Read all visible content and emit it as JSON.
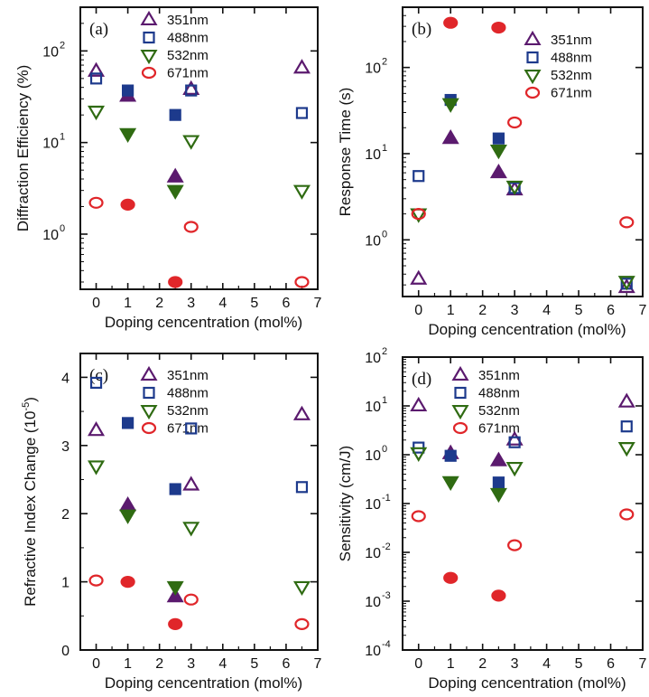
{
  "colors": {
    "351nm": "#5b1a6e",
    "488nm": "#1d3a8c",
    "532nm": "#2f6b12",
    "671nm": "#e0262a",
    "axis": "#111111"
  },
  "markers": {
    "351nm": "triangle-up",
    "488nm": "square",
    "532nm": "triangle-down",
    "671nm": "circle"
  },
  "chart_data": [
    {
      "id": "a",
      "panel_label": "(a)",
      "type": "scatter",
      "xlabel": "Doping cencentration (mol%)",
      "ylabel": "Diffraction Efficiency (%)",
      "yscale": "log",
      "xlim": [
        -0.5,
        7
      ],
      "ylim": [
        0.25,
        300
      ],
      "xticks": [
        0,
        1,
        2,
        3,
        4,
        5,
        6,
        7
      ],
      "xtick_labels": [
        "0",
        "1",
        "2",
        "3",
        "4",
        "5",
        "6",
        "7"
      ],
      "yticks": [
        1,
        10,
        100
      ],
      "ytick_labels": [
        [
          "10",
          "0"
        ],
        [
          "10",
          "1"
        ],
        [
          "10",
          "2"
        ]
      ],
      "legend": {
        "position": "top-center",
        "entries": [
          "351nm",
          "488nm",
          "532nm",
          "671nm"
        ]
      },
      "series": [
        {
          "name": "351nm",
          "points": [
            [
              0,
              60,
              false
            ],
            [
              1,
              32,
              true
            ],
            [
              2.5,
              4.2,
              true
            ],
            [
              3,
              38,
              false
            ],
            [
              6.5,
              65,
              false
            ]
          ]
        },
        {
          "name": "488nm",
          "points": [
            [
              0,
              50,
              false
            ],
            [
              1,
              37,
              true
            ],
            [
              2.5,
              20,
              true
            ],
            [
              3,
              37,
              false
            ],
            [
              6.5,
              21,
              false
            ]
          ]
        },
        {
          "name": "532nm",
          "points": [
            [
              0,
              22,
              false
            ],
            [
              1,
              12.5,
              true
            ],
            [
              2.5,
              3.0,
              true
            ],
            [
              3,
              10.5,
              false
            ],
            [
              6.5,
              3.0,
              false
            ]
          ]
        },
        {
          "name": "671nm",
          "points": [
            [
              0,
              2.2,
              false
            ],
            [
              1,
              2.1,
              true
            ],
            [
              2.5,
              0.3,
              true
            ],
            [
              3,
              1.2,
              false
            ],
            [
              6.5,
              0.3,
              false
            ]
          ]
        }
      ]
    },
    {
      "id": "b",
      "panel_label": "(b)",
      "type": "scatter",
      "xlabel": "Doping cencentration (mol%)",
      "ylabel": "Response Time (s)",
      "yscale": "log",
      "xlim": [
        -0.5,
        7
      ],
      "ylim": [
        0.22,
        500
      ],
      "xticks": [
        0,
        1,
        2,
        3,
        4,
        5,
        6,
        7
      ],
      "xtick_labels": [
        "0",
        "1",
        "2",
        "3",
        "4",
        "5",
        "6",
        "7"
      ],
      "yticks": [
        1,
        10,
        100
      ],
      "ytick_labels": [
        [
          "10",
          "0"
        ],
        [
          "10",
          "1"
        ],
        [
          "10",
          "2"
        ]
      ],
      "legend": {
        "position": "top-right",
        "entries": [
          "351nm",
          "488nm",
          "532nm",
          "671nm"
        ]
      },
      "series": [
        {
          "name": "351nm",
          "points": [
            [
              0,
              0.35,
              false
            ],
            [
              1,
              15,
              true
            ],
            [
              2.5,
              6,
              true
            ],
            [
              3,
              3.8,
              false
            ],
            [
              6.5,
              0.28,
              false
            ]
          ]
        },
        {
          "name": "488nm",
          "points": [
            [
              0,
              5.5,
              false
            ],
            [
              1,
              42,
              true
            ],
            [
              2.5,
              15,
              true
            ],
            [
              3,
              4.0,
              false
            ],
            [
              6.5,
              0.31,
              false
            ]
          ]
        },
        {
          "name": "532nm",
          "points": [
            [
              0,
              2.0,
              false
            ],
            [
              1,
              38,
              true
            ],
            [
              2.5,
              11,
              true
            ],
            [
              3,
              4.2,
              false
            ],
            [
              6.5,
              0.33,
              false
            ]
          ]
        },
        {
          "name": "671nm",
          "points": [
            [
              0,
              2.0,
              false
            ],
            [
              1,
              330,
              true
            ],
            [
              2.5,
              290,
              true
            ],
            [
              3,
              23,
              false
            ],
            [
              6.5,
              1.6,
              false
            ]
          ]
        }
      ]
    },
    {
      "id": "c",
      "panel_label": "(c)",
      "type": "scatter",
      "xlabel": "Doping cencentration (mol%)",
      "ylabel": "Refractive Index Change (10",
      "ylabel_sup": "-5",
      "ylabel_suffix": ")",
      "yscale": "linear",
      "xlim": [
        -0.5,
        7
      ],
      "ylim": [
        0,
        4.35
      ],
      "xticks": [
        0,
        1,
        2,
        3,
        4,
        5,
        6,
        7
      ],
      "xtick_labels": [
        "0",
        "1",
        "2",
        "3",
        "4",
        "5",
        "6",
        "7"
      ],
      "yticks": [
        0,
        1,
        2,
        3,
        4
      ],
      "ytick_labels": [
        "0",
        "1",
        "2",
        "3",
        "4"
      ],
      "legend": {
        "position": "top-center",
        "entries": [
          "351nm",
          "488nm",
          "532nm",
          "671nm"
        ]
      },
      "series": [
        {
          "name": "351nm",
          "points": [
            [
              0,
              3.22,
              false
            ],
            [
              1,
              2.12,
              true
            ],
            [
              2.5,
              0.78,
              true
            ],
            [
              3,
              2.42,
              false
            ],
            [
              6.5,
              3.45,
              false
            ]
          ]
        },
        {
          "name": "488nm",
          "points": [
            [
              0,
              3.92,
              false
            ],
            [
              1,
              3.33,
              true
            ],
            [
              2.5,
              2.36,
              true
            ],
            [
              3,
              3.25,
              false
            ],
            [
              6.5,
              2.39,
              false
            ]
          ]
        },
        {
          "name": "532nm",
          "points": [
            [
              0,
              2.7,
              false
            ],
            [
              1,
              1.98,
              true
            ],
            [
              2.5,
              0.93,
              true
            ],
            [
              3,
              1.8,
              false
            ],
            [
              6.5,
              0.93,
              false
            ]
          ]
        },
        {
          "name": "671nm",
          "points": [
            [
              0,
              1.02,
              false
            ],
            [
              1,
              1.0,
              true
            ],
            [
              2.5,
              0.38,
              true
            ],
            [
              3,
              0.74,
              false
            ],
            [
              6.5,
              0.38,
              false
            ]
          ]
        }
      ]
    },
    {
      "id": "d",
      "panel_label": "(d)",
      "type": "scatter",
      "xlabel": "Doping cencentration (mol%)",
      "ylabel": "Sensitivity (cm/J)",
      "yscale": "log",
      "xlim": [
        -0.5,
        7
      ],
      "ylim": [
        0.0001,
        100
      ],
      "xticks": [
        0,
        1,
        2,
        3,
        4,
        5,
        6,
        7
      ],
      "xtick_labels": [
        "0",
        "1",
        "2",
        "3",
        "4",
        "5",
        "6",
        "7"
      ],
      "yticks": [
        0.0001,
        0.001,
        0.01,
        0.1,
        1,
        10,
        100
      ],
      "ytick_labels": [
        [
          "10",
          "-4"
        ],
        [
          "10",
          "-3"
        ],
        [
          "10",
          "-2"
        ],
        [
          "10",
          "-1"
        ],
        [
          "10",
          "0"
        ],
        [
          "10",
          "1"
        ],
        [
          "10",
          "2"
        ]
      ],
      "legend": {
        "position": "top-center",
        "entries": [
          "351nm",
          "488nm",
          "532nm",
          "671nm"
        ]
      },
      "series": [
        {
          "name": "351nm",
          "points": [
            [
              0,
              10,
              false
            ],
            [
              1,
              1.05,
              true
            ],
            [
              2.5,
              0.75,
              true
            ],
            [
              3,
              2.0,
              false
            ],
            [
              6.5,
              12,
              false
            ]
          ]
        },
        {
          "name": "488nm",
          "points": [
            [
              0,
              1.4,
              false
            ],
            [
              1,
              0.95,
              true
            ],
            [
              2.5,
              0.27,
              true
            ],
            [
              3,
              1.8,
              false
            ],
            [
              6.5,
              3.8,
              false
            ]
          ]
        },
        {
          "name": "532nm",
          "points": [
            [
              0,
              1.1,
              false
            ],
            [
              1,
              0.28,
              true
            ],
            [
              2.5,
              0.16,
              true
            ],
            [
              3,
              0.55,
              false
            ],
            [
              6.5,
              1.4,
              false
            ]
          ]
        },
        {
          "name": "671nm",
          "points": [
            [
              0,
              0.055,
              false
            ],
            [
              1,
              0.003,
              true
            ],
            [
              2.5,
              0.0013,
              true
            ],
            [
              3,
              0.014,
              false
            ],
            [
              6.5,
              0.06,
              false
            ]
          ]
        }
      ]
    }
  ]
}
